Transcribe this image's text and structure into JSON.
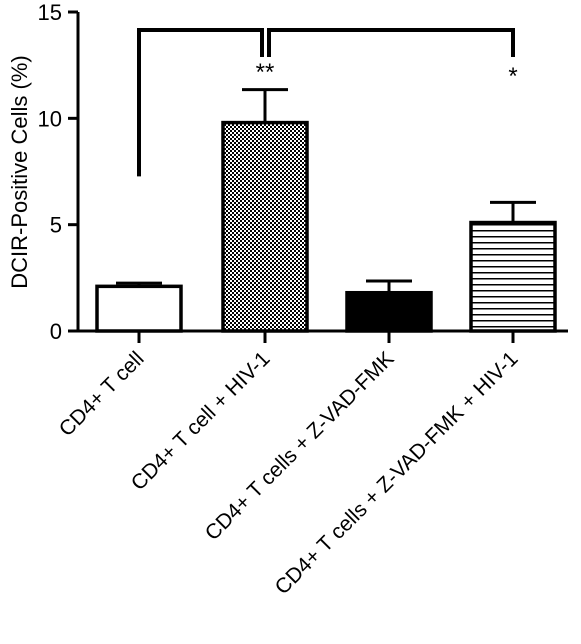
{
  "chart_data": {
    "type": "bar",
    "title": "",
    "xlabel": "",
    "ylabel": "DCIR-Positive Cells (%)",
    "ylim": [
      0,
      15
    ],
    "yticks": [
      0,
      5,
      10,
      15
    ],
    "ytick_labels": [
      "0",
      "5",
      "10",
      "15"
    ],
    "grid": false,
    "legend": "none",
    "categories": [
      "CD4+ T cell",
      "CD4+ T cell + HIV-1",
      "CD4+ T cells + Z-VAD-FMK",
      "CD4+ T cells + Z-VAD-FMK + HIV-1"
    ],
    "values": [
      2.1,
      9.8,
      1.8,
      5.1
    ],
    "error_bars": [
      0.15,
      1.55,
      0.55,
      0.95
    ],
    "fills": [
      "white",
      "checkered",
      "black",
      "horizontal-stripes"
    ],
    "significance": [
      {
        "from": 0,
        "to": 1,
        "label": "**"
      },
      {
        "from": 1,
        "to": 3,
        "label": "*"
      }
    ]
  }
}
